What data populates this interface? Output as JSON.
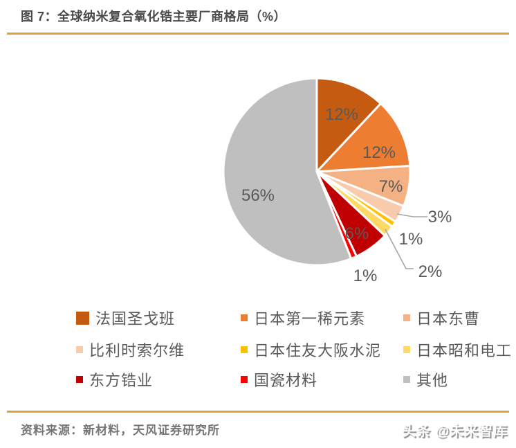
{
  "header": {
    "title": "图 7：全球纳米复合氧化锆主要厂商格局（%）"
  },
  "chart_data": {
    "type": "pie",
    "title": "全球纳米复合氧化锆主要厂商格局（%）",
    "unit": "%",
    "start_angle_deg": 0,
    "direction": "clockwise",
    "legend_position": "bottom",
    "segments": [
      {
        "name": "法国圣戈班",
        "value": 12,
        "label": "12%",
        "color": "#c55a11"
      },
      {
        "name": "日本第一稀元素",
        "value": 12,
        "label": "12%",
        "color": "#ed7d31"
      },
      {
        "name": "日本东曹",
        "value": 7,
        "label": "7%",
        "color": "#f4b183"
      },
      {
        "name": "比利时索尔维",
        "value": 3,
        "label": "3%",
        "color": "#f8cbad"
      },
      {
        "name": "日本住友大阪水泥",
        "value": 1,
        "label": "1%",
        "color": "#ffc000"
      },
      {
        "name": "日本昭和电工",
        "value": 2,
        "label": "2%",
        "color": "#ffd966"
      },
      {
        "name": "东方锆业",
        "value": 6,
        "label": "6%",
        "color": "#c00000"
      },
      {
        "name": "国瓷材料",
        "value": 1,
        "label": "1%",
        "color": "#ff0000"
      },
      {
        "name": "其他",
        "value": 56,
        "label": "56%",
        "color": "#bfbfbf"
      }
    ]
  },
  "footer": {
    "source": "资料来源：新材料，天风证券研究所",
    "watermark": "头条 @未来智库"
  },
  "colors": {
    "accent_line": "#e0a03c",
    "label_text": "#595959",
    "leader_line": "#a6a6a6",
    "title_text": "#4a4a4a",
    "source_text": "#767676"
  }
}
